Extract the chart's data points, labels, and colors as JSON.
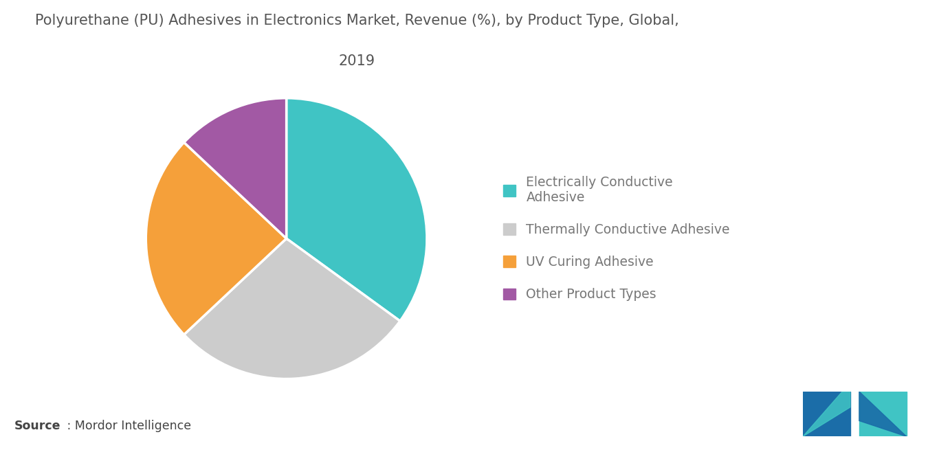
{
  "title_line1": "Polyurethane (PU) Adhesives in Electronics Market, Revenue (%), by Product Type, Global,",
  "title_line2": "2019",
  "slices": [
    {
      "label": "Electrically Conductive\nAdhesive",
      "value": 35,
      "color": "#40C4C4"
    },
    {
      "label": "Thermally Conductive Adhesive",
      "value": 28,
      "color": "#CCCCCC"
    },
    {
      "label": "UV Curing Adhesive",
      "value": 24,
      "color": "#F5A03A"
    },
    {
      "label": "Other Product Types",
      "value": 13,
      "color": "#A259A4"
    }
  ],
  "legend_labels": [
    "Electrically Conductive\nAdhesive",
    "Thermally Conductive Adhesive",
    "UV Curing Adhesive",
    "Other Product Types"
  ],
  "legend_colors": [
    "#40C4C4",
    "#CCCCCC",
    "#F5A03A",
    "#A259A4"
  ],
  "title_color": "#555555",
  "legend_text_color": "#777777",
  "source_bold": "Source",
  "source_rest": " : Mordor Intelligence",
  "background_color": "#FFFFFF",
  "logo_left_color": "#1B6DA8",
  "logo_right_color": "#40C4C4"
}
